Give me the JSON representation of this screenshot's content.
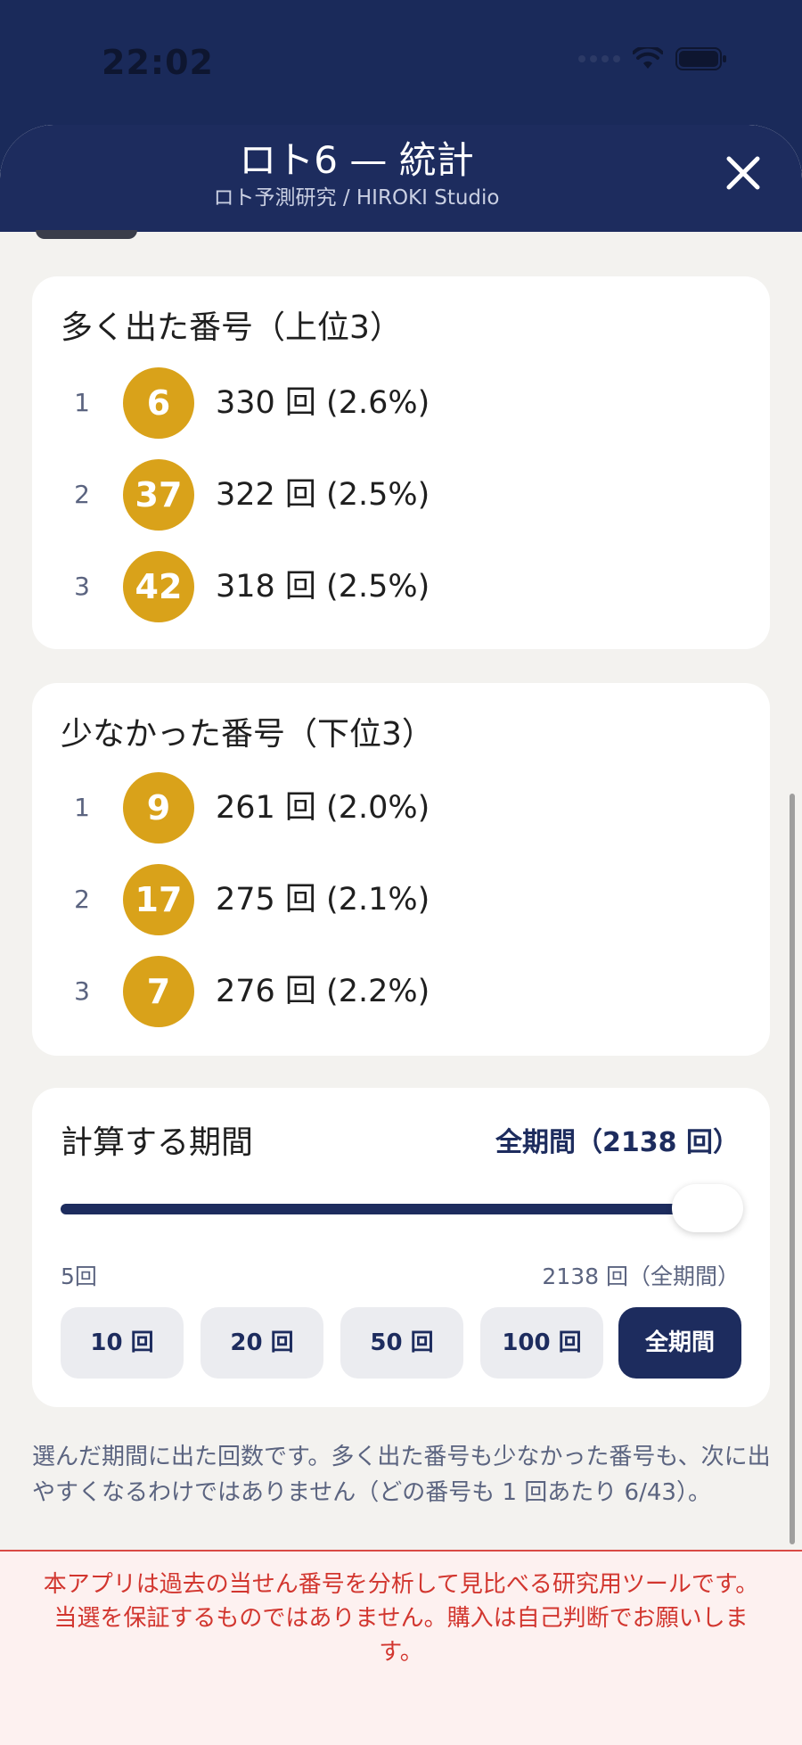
{
  "status_bar": {
    "time": "22:02"
  },
  "header": {
    "title": "ロト6 — 統計",
    "subtitle": "ロト予測研究 / HIROKI Studio"
  },
  "top_card": {
    "title": "多く出た番号（上位3）",
    "rows": [
      {
        "rank": "1",
        "number": "6",
        "count": "330 回 (2.6%)"
      },
      {
        "rank": "2",
        "number": "37",
        "count": "322 回 (2.5%)"
      },
      {
        "rank": "3",
        "number": "42",
        "count": "318 回 (2.5%)"
      }
    ]
  },
  "bottom_card": {
    "title": "少なかった番号（下位3）",
    "rows": [
      {
        "rank": "1",
        "number": "9",
        "count": "261 回 (2.0%)"
      },
      {
        "rank": "2",
        "number": "17",
        "count": "275 回 (2.1%)"
      },
      {
        "rank": "3",
        "number": "7",
        "count": "276 回 (2.2%)"
      }
    ]
  },
  "period": {
    "title": "計算する期間",
    "value": "全期間（2138 回）",
    "slider_level": 1.0,
    "min_label": "5回",
    "max_label": "2138 回（全期間）",
    "buttons": [
      "10 回",
      "20 回",
      "50 回",
      "100 回",
      "全期間"
    ],
    "selected": "全期間"
  },
  "note": "選んだ期間に出た回数です。多く出た番号も少なかった番号も、次に出やすくなるわけではありません（どの番号も 1 回あたり 6/43）。",
  "disclaimer": "本アプリは過去の当せん番号を分析して見比べる研究用ツールです。当選を保証するものではありません。購入は自己判断でお願いします。",
  "colors": {
    "navy": "#1d2c5e",
    "ball_gold": "#d9a21a",
    "warning_red": "#d2362f"
  }
}
